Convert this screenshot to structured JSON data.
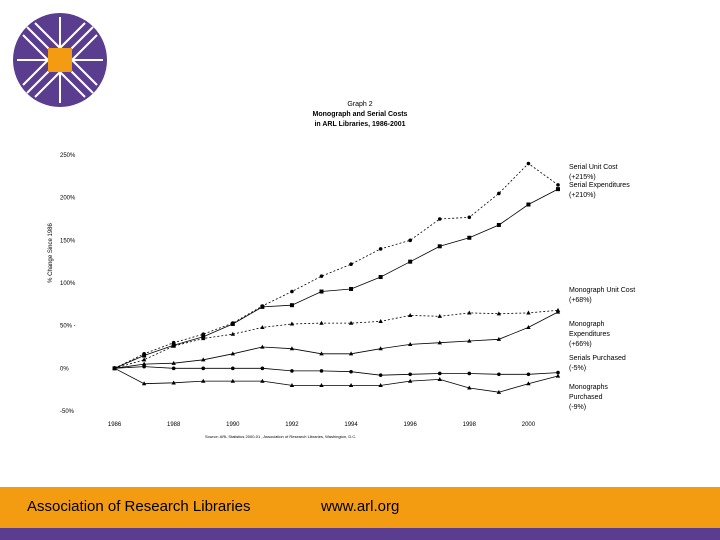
{
  "header": {
    "graph_label": "Graph 2",
    "title_line1": "Monograph and Serial Costs",
    "title_line2": "in ARL Libraries, 1986-2001"
  },
  "source_note": "Source:  ARL Statistics 2000-01 , Association of Research Libraries, Washington, D.C.",
  "footer": {
    "org": "Association of Research Libraries",
    "url": "www.arl.org"
  },
  "colors": {
    "footer_bar": "#f39c12",
    "stripe": "#5a3d8f",
    "logo_bg": "#5a3d8f",
    "logo_center": "#f39c12"
  },
  "logo_icon": "arl-logo",
  "chart_data": {
    "type": "line",
    "ylabel": "% Change Since 1986",
    "x": [
      1986,
      1987,
      1988,
      1989,
      1990,
      1991,
      1992,
      1993,
      1994,
      1995,
      1996,
      1997,
      1998,
      1999,
      2000,
      2001
    ],
    "xticks": [
      "1986",
      "1988",
      "1990",
      "1992",
      "1994",
      "1996",
      "1998",
      "2000"
    ],
    "xtick_values": [
      1986,
      1988,
      1990,
      1992,
      1994,
      1996,
      1998,
      2000
    ],
    "yticks": [
      "-50%",
      "0%",
      "50% -",
      "100%",
      "150%",
      "200%",
      "250%"
    ],
    "ytick_values": [
      -50,
      0,
      50,
      100,
      150,
      200,
      250
    ],
    "xlim": [
      1985,
      2001
    ],
    "ylim": [
      -50,
      250
    ],
    "series": [
      {
        "label": "Serial Unit Cost\n(+215%)",
        "marker": "circle",
        "dash": "2,2",
        "values": [
          0,
          17,
          30,
          40,
          53,
          73,
          90,
          108,
          122,
          140,
          150,
          175,
          177,
          205,
          240,
          215
        ]
      },
      {
        "label": "Serial Expenditures\n(+210%)",
        "marker": "square",
        "dash": "",
        "values": [
          0,
          15,
          27,
          37,
          52,
          72,
          74,
          90,
          93,
          107,
          125,
          143,
          153,
          168,
          192,
          210
        ]
      },
      {
        "label": "Monograph Unit Cost\n(+68%)",
        "marker": "triangle",
        "dash": "2,2",
        "values": [
          0,
          10,
          26,
          35,
          40,
          48,
          52,
          53,
          53,
          55,
          62,
          61,
          65,
          64,
          65,
          68
        ]
      },
      {
        "label": "Monograph\nExpenditures\n(+66%)",
        "marker": "triangle",
        "dash": "",
        "values": [
          0,
          5,
          6,
          10,
          17,
          25,
          23,
          17,
          17,
          23,
          28,
          30,
          32,
          34,
          48,
          66
        ]
      },
      {
        "label": "Serials Purchased\n(-5%)",
        "marker": "circle",
        "dash": "",
        "values": [
          0,
          2,
          0,
          0,
          0,
          0,
          -3,
          -3,
          -4,
          -8,
          -7,
          -6,
          -6,
          -7,
          -7,
          -5
        ]
      },
      {
        "label": "Monographs\nPurchased\n(-9%)",
        "marker": "triangle",
        "dash": "",
        "values": [
          0,
          -18,
          -17,
          -15,
          -15,
          -15,
          -20,
          -20,
          -20,
          -20,
          -15,
          -13,
          -23,
          -28,
          -18,
          -9
        ]
      }
    ]
  }
}
